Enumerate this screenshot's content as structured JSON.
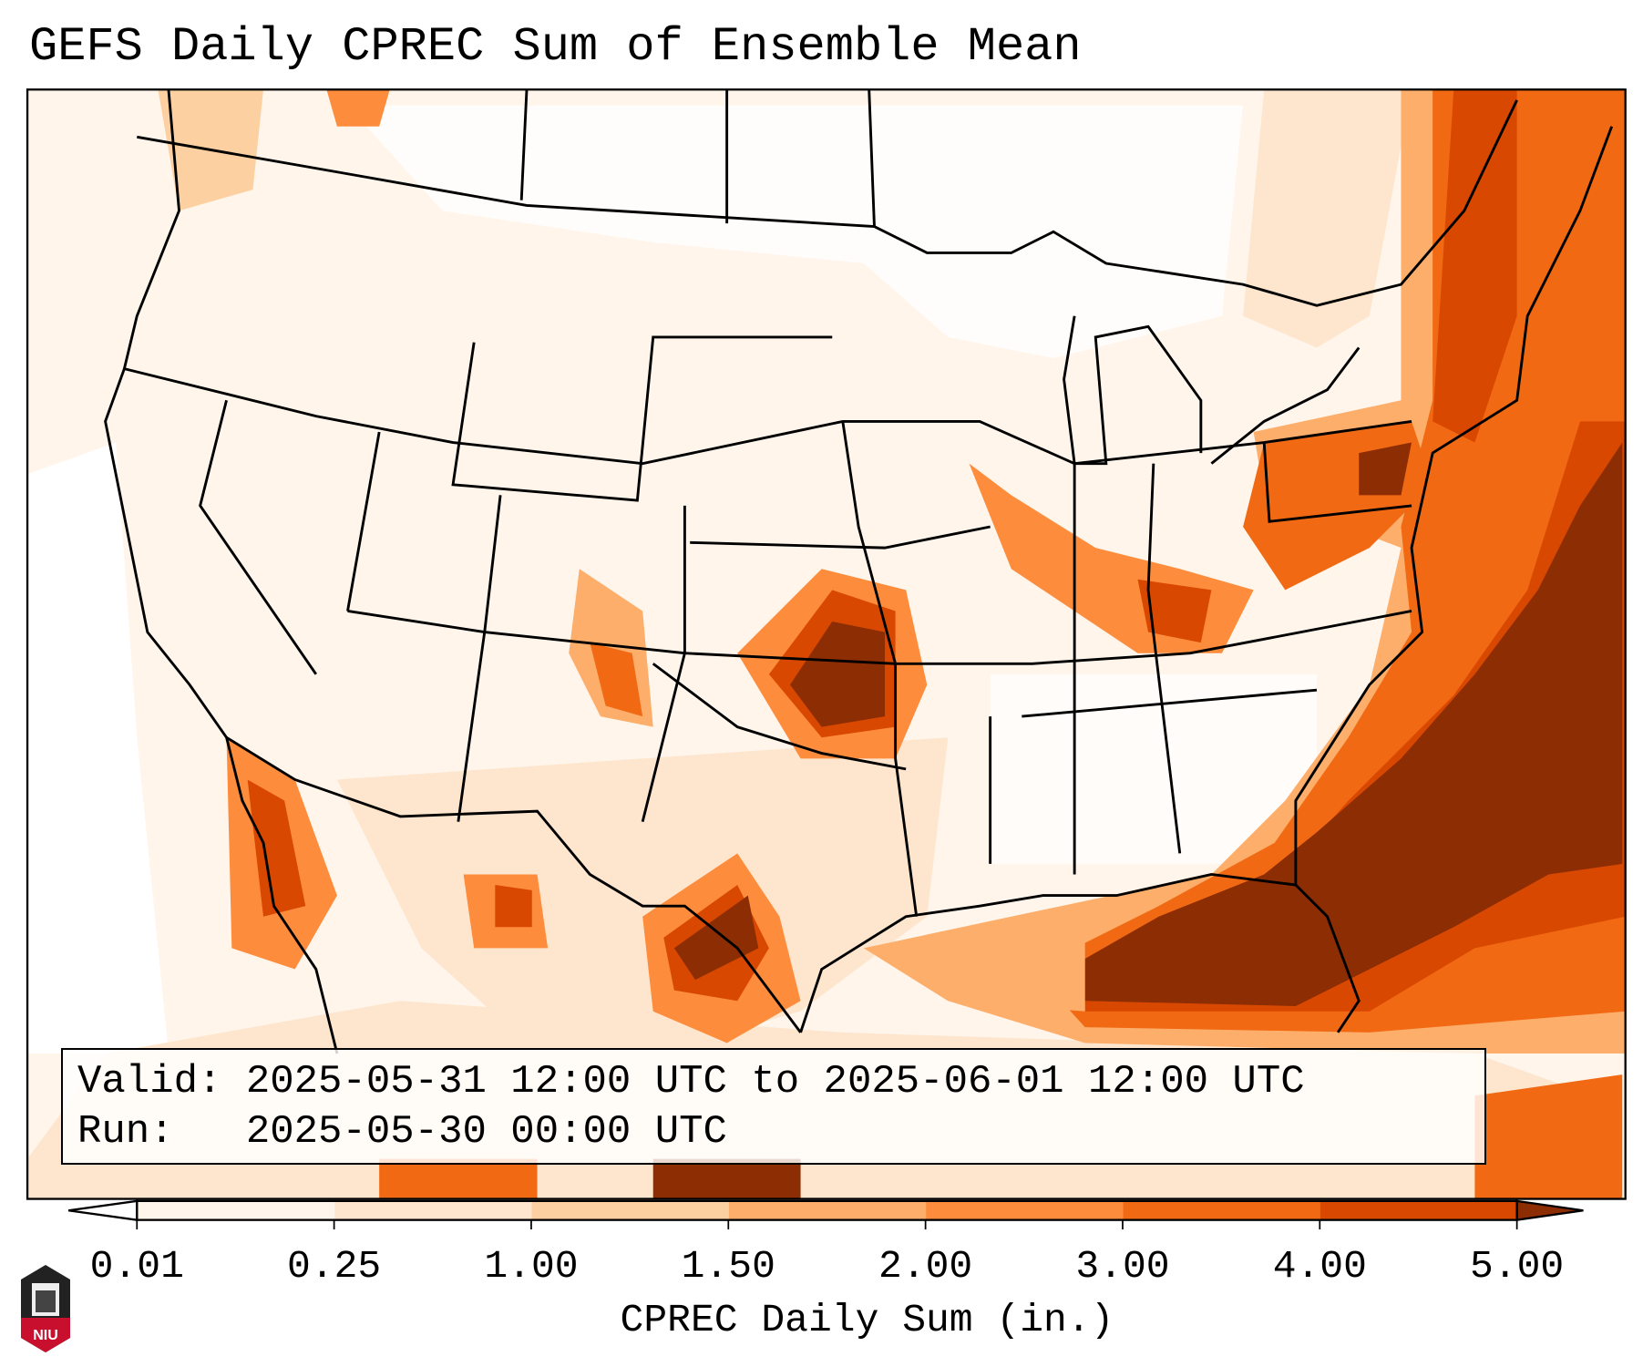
{
  "title": "GEFS Daily CPREC Sum of Ensemble Mean",
  "info": {
    "valid_label": "Valid:",
    "valid_value": "2025-05-31 12:00 UTC to 2025-06-01 12:00 UTC",
    "run_label": "Run:",
    "run_value": "2025-05-30 00:00 UTC"
  },
  "colorbar": {
    "label": "CPREC Daily Sum (in.)",
    "ticks": [
      "0.01",
      "0.25",
      "1.00",
      "1.50",
      "2.00",
      "3.00",
      "4.00",
      "5.00"
    ],
    "colors": [
      "#fff5eb",
      "#fee6ce",
      "#fdd0a2",
      "#fdae6b",
      "#fd8d3c",
      "#f16913",
      "#d94801",
      "#8c2d04"
    ]
  },
  "logo": {
    "text": "NIU"
  }
}
